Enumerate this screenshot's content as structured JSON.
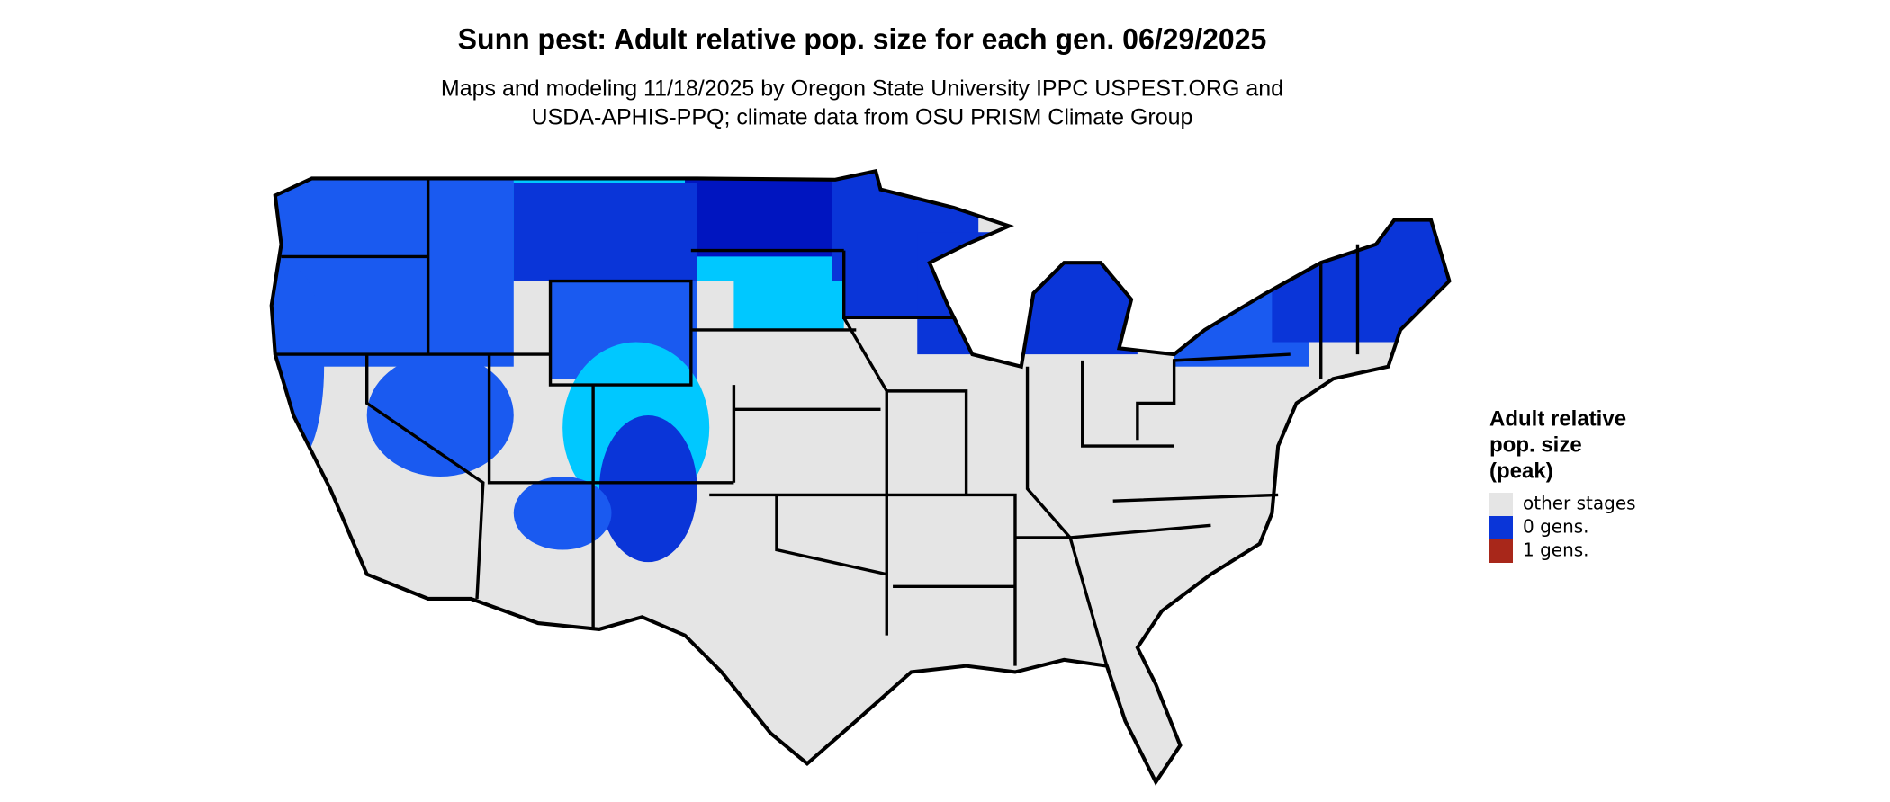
{
  "title": "Sunn pest: Adult relative pop. size for each gen. 06/29/2025",
  "subtitle": [
    "Maps and modeling 11/18/2025 by Oregon State University IPPC USPEST.ORG and",
    "USDA-APHIS-PPQ; climate data from OSU PRISM Climate Group"
  ],
  "legend": {
    "title": [
      "Adult relative",
      "pop. size",
      "(peak)"
    ],
    "items": [
      {
        "label": "other stages",
        "color": "#e5e5e5"
      },
      {
        "label": "0 gens.",
        "color": "#0a35d8"
      },
      {
        "label": "1 gens.",
        "color": "#a8271a"
      }
    ]
  }
}
